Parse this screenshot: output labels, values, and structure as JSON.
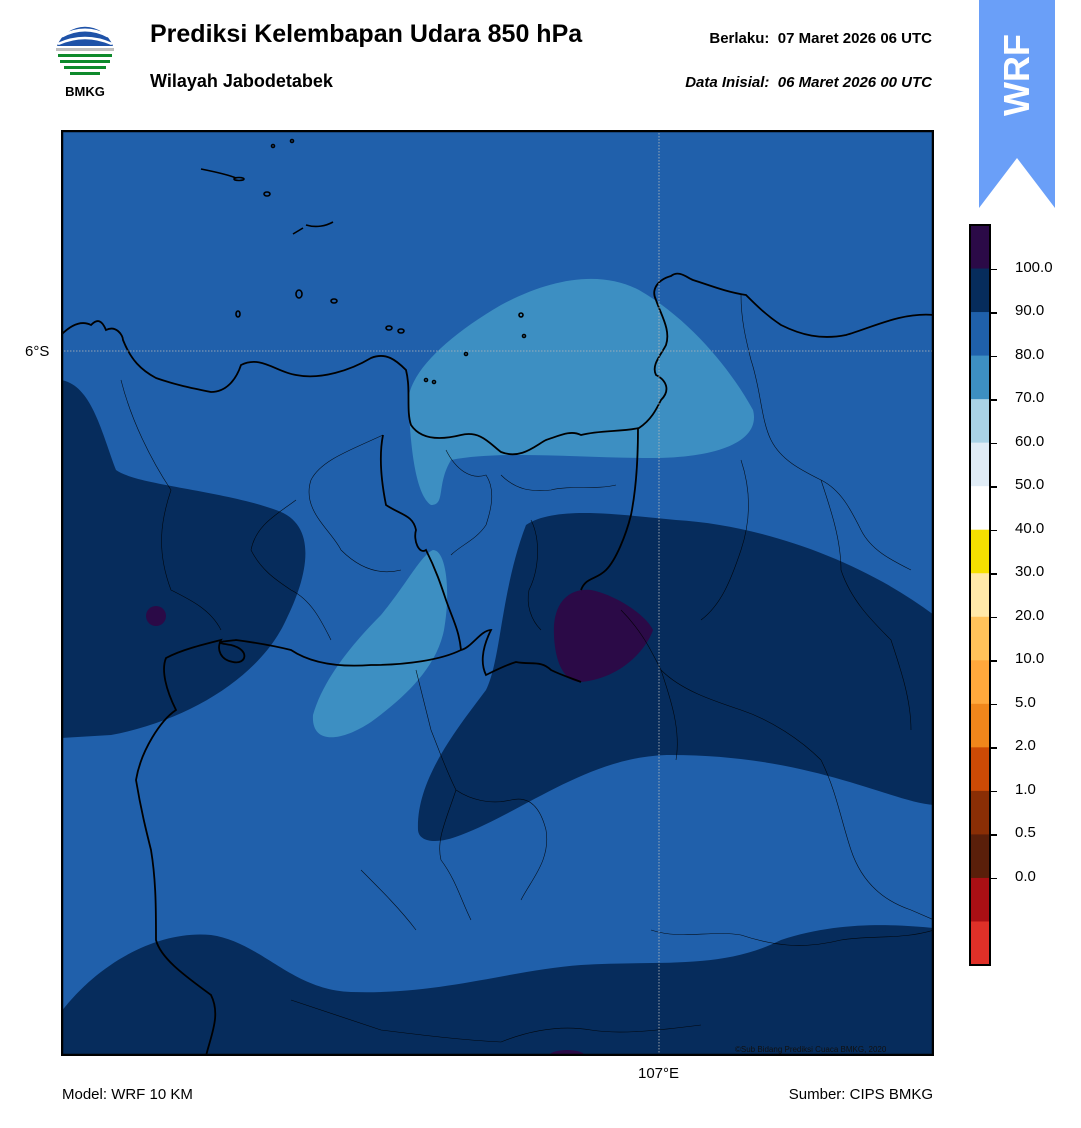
{
  "header": {
    "logo_text": "BMKG",
    "title": "Prediksi Kelembapan Udara 850 hPa",
    "subtitle": "Wilayah Jabodetabek",
    "valid_label": "Berlaku:",
    "valid_time": "07 Maret 2026 06 UTC",
    "init_label": "Data Inisial:",
    "init_time": "06 Maret 2026 00 UTC",
    "badge": "WRF"
  },
  "map": {
    "lat_label": "6°S",
    "lon_label": "107°E",
    "copyright": "©Sub Bidang Prediksi Cuaca BMKG, 2020"
  },
  "colorbar": {
    "ticks": [
      "100.0",
      "90.0",
      "80.0",
      "70.0",
      "60.0",
      "50.0",
      "40.0",
      "30.0",
      "20.0",
      "10.0",
      "5.0",
      "2.0",
      "1.0",
      "0.5",
      "0.0"
    ],
    "colors": [
      "#2b0a47",
      "#062c5c",
      "#1f60ab",
      "#3d8fc2",
      "#a9d2e6",
      "#e0ecf6",
      "#ffffff",
      "#f5e000",
      "#ffe9a8",
      "#ffc35a",
      "#ffa83c",
      "#f0861b",
      "#cc4a05",
      "#8a2e05",
      "#5a1f0a",
      "#ab0f14",
      "#e03028"
    ]
  },
  "footer": {
    "model": "Model: WRF 10 KM",
    "source": "Sumber: CIPS BMKG"
  },
  "colors": {
    "badge": "#6a9ff8",
    "level_80_90": "#2060ab",
    "level_90_100": "#062c5c",
    "level_70_80": "#3d8fc2",
    "level_above_100": "#2b0a47"
  }
}
